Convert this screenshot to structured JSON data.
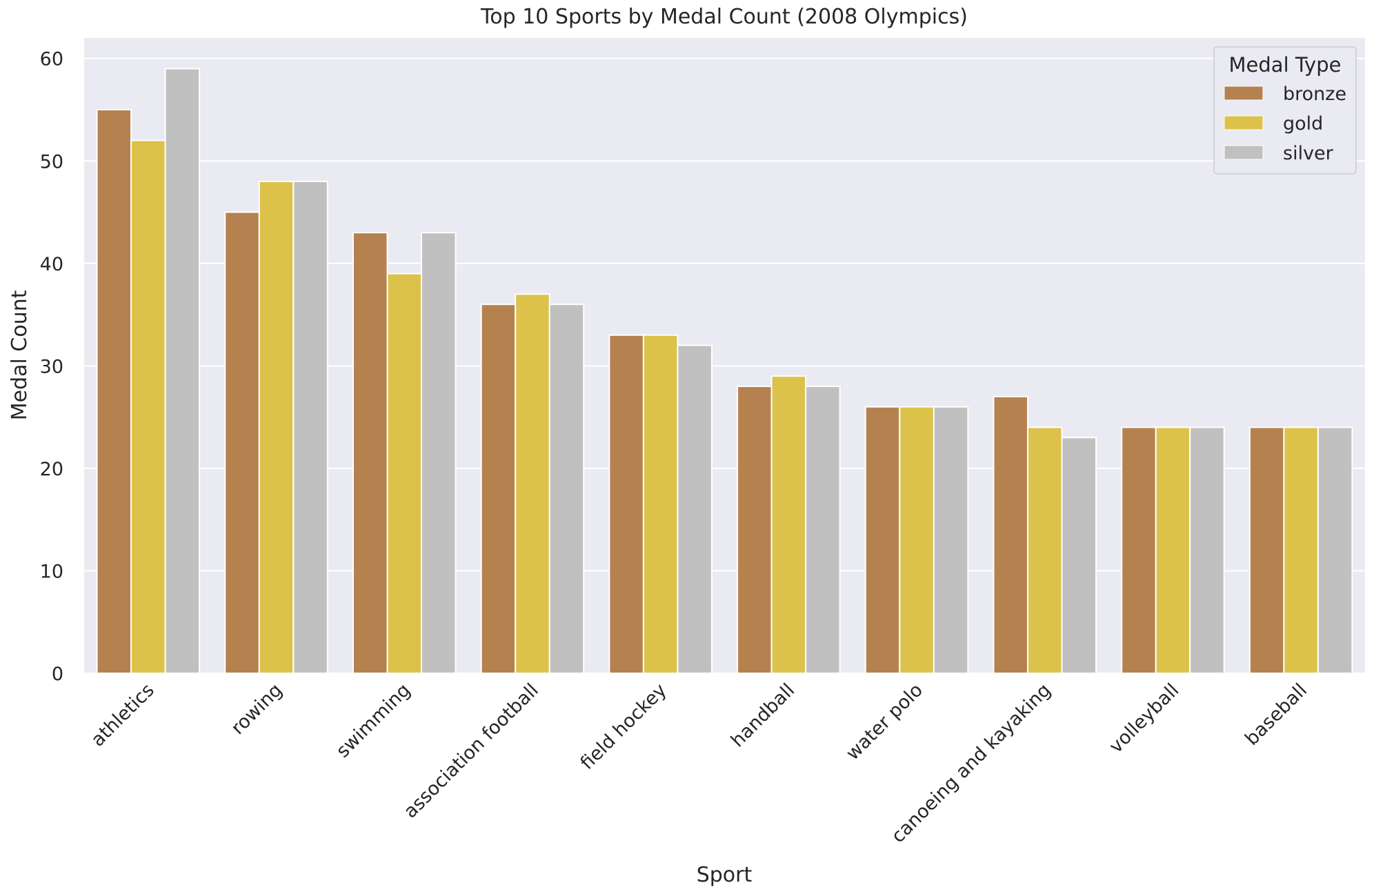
{
  "chart_data": {
    "type": "bar",
    "title": "Top 10 Sports by Medal Count (2008 Olympics)",
    "xlabel": "Sport",
    "ylabel": "Medal Count",
    "ylim": [
      0,
      62
    ],
    "yticks": [
      0,
      10,
      20,
      30,
      40,
      50,
      60
    ],
    "grid": true,
    "categories": [
      "athletics",
      "rowing",
      "swimming",
      "association football",
      "field hockey",
      "handball",
      "water polo",
      "canoeing and kayaking",
      "volleyball",
      "baseball"
    ],
    "series": [
      {
        "name": "bronze",
        "color": "#b5824f",
        "values": [
          55,
          45,
          43,
          36,
          33,
          28,
          26,
          27,
          24,
          24
        ]
      },
      {
        "name": "gold",
        "color": "#dcc24a",
        "values": [
          52,
          48,
          39,
          37,
          33,
          29,
          26,
          24,
          24,
          24
        ]
      },
      {
        "name": "silver",
        "color": "#c0c0c0",
        "values": [
          59,
          48,
          43,
          36,
          32,
          28,
          26,
          23,
          24,
          24
        ]
      }
    ],
    "legend": {
      "title": "Medal Type",
      "position": "top-right"
    }
  }
}
